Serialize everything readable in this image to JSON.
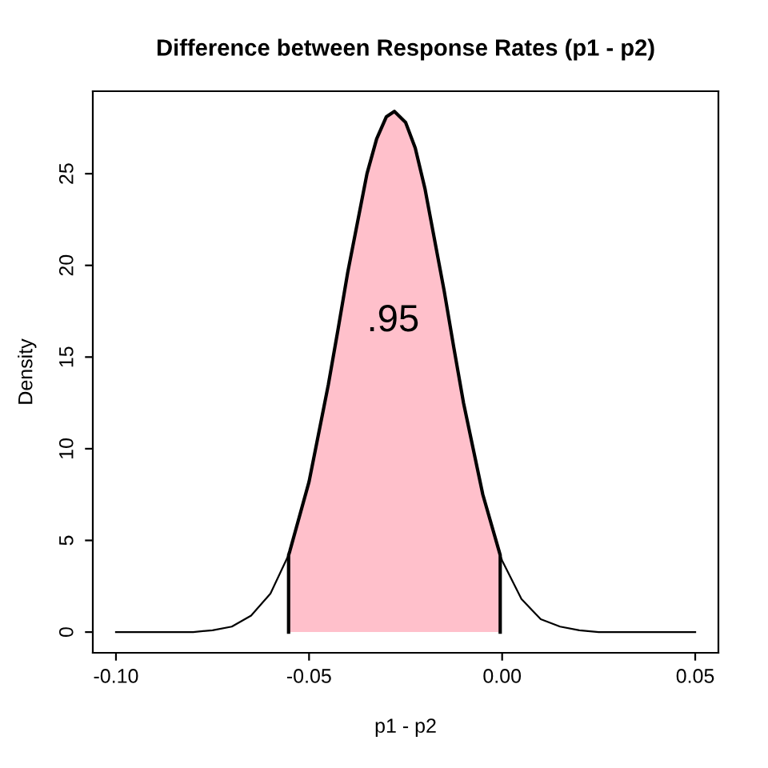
{
  "chart_data": {
    "type": "line",
    "title": "Difference between Response Rates (p1 - p2)",
    "xlabel": "p1 - p2",
    "ylabel": "Density",
    "xlim": [
      -0.106,
      0.056
    ],
    "xticks": [
      {
        "value": -0.1,
        "label": "-0.10"
      },
      {
        "value": -0.05,
        "label": "-0.05"
      },
      {
        "value": 0,
        "label": "0.00"
      },
      {
        "value": 0.05,
        "label": "0.05"
      }
    ],
    "ylim": [
      -1.13,
      29.5
    ],
    "yticks": [
      0,
      5,
      10,
      15,
      20,
      25
    ],
    "grid": false,
    "legend": false,
    "series": [
      {
        "type": "area",
        "color": "#ffc0cb",
        "x": [
          -0.0553,
          -0.055,
          -0.05,
          -0.045,
          -0.0425,
          -0.04,
          -0.035,
          -0.0325,
          -0.03,
          -0.0279,
          -0.025,
          -0.0225,
          -0.02,
          -0.015,
          -0.0125,
          -0.01,
          -0.005,
          -0.0005
        ],
        "values": [
          4.2,
          4.4,
          8.2,
          13.5,
          16.5,
          19.6,
          25.0,
          26.9,
          28.1,
          28.4,
          27.8,
          26.4,
          24.2,
          18.6,
          15.5,
          12.5,
          7.5,
          4.2
        ]
      },
      {
        "color": "#000000",
        "x": [
          -0.1,
          -0.095,
          -0.09,
          -0.085,
          -0.08,
          -0.075,
          -0.07,
          -0.065,
          -0.06,
          -0.0553,
          -0.055,
          -0.05,
          -0.045,
          -0.0425,
          -0.04,
          -0.035,
          -0.0325,
          -0.03,
          -0.0279,
          -0.025,
          -0.0225,
          -0.02,
          -0.015,
          -0.0125,
          -0.01,
          -0.005,
          -0.0005,
          0,
          0.005,
          0.01,
          0.015,
          0.02,
          0.025,
          0.03,
          0.035,
          0.04,
          0.045,
          0.05
        ],
        "values": [
          0.0,
          0.0,
          0.0,
          0.0,
          0.0,
          0.1,
          0.3,
          0.9,
          2.1,
          4.2,
          4.4,
          8.2,
          13.5,
          16.5,
          19.6,
          25.0,
          26.9,
          28.1,
          28.4,
          27.8,
          26.4,
          24.2,
          18.6,
          15.5,
          12.5,
          7.5,
          4.2,
          3.9,
          1.8,
          0.7,
          0.3,
          0.1,
          0.0,
          0.0,
          0.0,
          0.0,
          0.0,
          0.0
        ]
      }
    ],
    "annotations": [
      ".95"
    ]
  }
}
